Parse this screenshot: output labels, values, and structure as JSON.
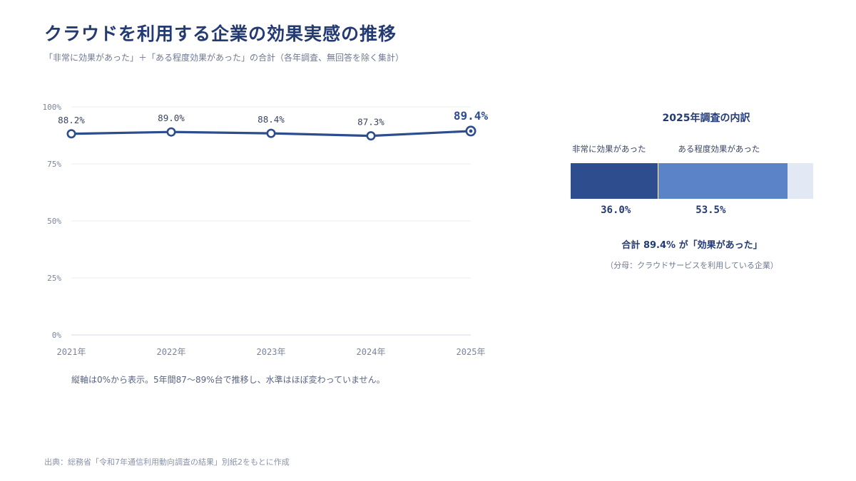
{
  "title": "クラウドを利用する企業の効果実感の推移",
  "subtitle": "「非常に効果があった」＋「ある程度効果があった」の合計（各年調査、無回答を除く集計）",
  "note": "縦軸は0%から表示。5年間87〜89%台で推移し、水準はほぼ変わっていません。",
  "source": "出典：総務省「令和7年通信利用動向調査の結果」別紙2をもとに作成",
  "colors": {
    "primary": "#2d4d8e",
    "secondary": "#5b84c8",
    "remainder": "#e3e9f4",
    "grid": "#ececec",
    "axis_text": "#7a849c"
  },
  "chart_data": [
    {
      "type": "line",
      "x": [
        "2021年",
        "2022年",
        "2023年",
        "2024年",
        "2025年"
      ],
      "series": [
        {
          "values": [
            88.2,
            89.0,
            88.4,
            87.3,
            89.4
          ]
        }
      ],
      "data_labels": [
        "88.2%",
        "89.0%",
        "88.4%",
        "87.3%",
        "89.4%"
      ],
      "y_ticks": [
        0,
        25,
        50,
        75,
        100
      ],
      "y_tick_labels": [
        "0%",
        "25%",
        "50%",
        "75%",
        "100%"
      ],
      "ylim": [
        0,
        100
      ],
      "grid": true,
      "highlight_last": true
    },
    {
      "type": "bar",
      "orientation": "horizontal-stacked",
      "title": "2025年調査の内訳",
      "categories": [
        "非常に効果があった",
        "ある程度効果があった"
      ],
      "values": [
        36.0,
        53.5
      ],
      "value_labels": [
        "36.0%",
        "53.5%"
      ],
      "total": 100,
      "summary": "合計 89.4% が「効果があった」",
      "denominator": "（分母：クラウドサービスを利用している企業）"
    }
  ]
}
